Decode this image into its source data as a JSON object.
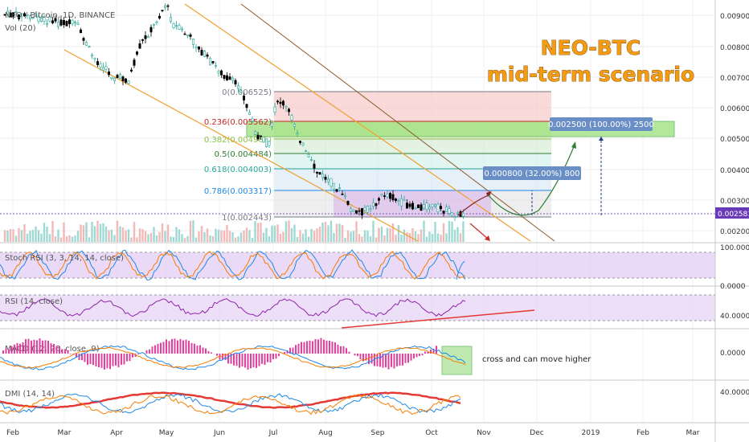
{
  "header": {
    "symbol": "NEO / Bitcoin, 1D, BINANCE",
    "volume": "Vol (20)"
  },
  "title": {
    "line1": "NEO-BTC",
    "line2": "mid-term scenario"
  },
  "chart_data": {
    "type": "candlestick",
    "price_axis": {
      "ticks": [
        "0.009000",
        "0.008000",
        "0.007000",
        "0.006000",
        "0.005000",
        "0.004000",
        "0.003000",
        "0.002000"
      ],
      "current_price": "0.002581"
    },
    "time_axis": [
      "Feb",
      "Mar",
      "Apr",
      "May",
      "Jun",
      "Jul",
      "Aug",
      "Sep",
      "Oct",
      "Nov",
      "Dec",
      "2019",
      "Feb",
      "Mar"
    ],
    "fibonacci": [
      {
        "level": "0(0.006525)",
        "color": "#787b86"
      },
      {
        "level": "0.236(0.005562)",
        "color": "#c62828"
      },
      {
        "level": "0.382(0.004966)",
        "color": "#8bc34a"
      },
      {
        "level": "0.5(0.004484)",
        "color": "#2e7d32"
      },
      {
        "level": "0.618(0.004003)",
        "color": "#26a69a"
      },
      {
        "level": "0.786(0.003317)",
        "color": "#1e88e5"
      },
      {
        "level": "1(0.002443)",
        "color": "#787b86"
      }
    ],
    "measure_labels": [
      "0.002500 (100.00%) 2500",
      "0.000800 (32.00%) 800"
    ],
    "indicators": [
      {
        "name": "Stoch RSI (3, 3, 14, 14, close)",
        "ticks": [
          "100.0000",
          "0.0000"
        ]
      },
      {
        "name": "RSI (14, close)",
        "ticks": [
          "40.0000"
        ]
      },
      {
        "name": "MACD (12, 26, close, 9)",
        "ticks": [
          "0.0000"
        ]
      },
      {
        "name": "DMI (14, 14)",
        "ticks": [
          "40.0000"
        ]
      }
    ],
    "note": "cross and can move higher"
  },
  "colors": {
    "up": "#26a69a",
    "down": "#000000",
    "price_tag": "#673ab7",
    "label_box": "#6a8fc7"
  }
}
